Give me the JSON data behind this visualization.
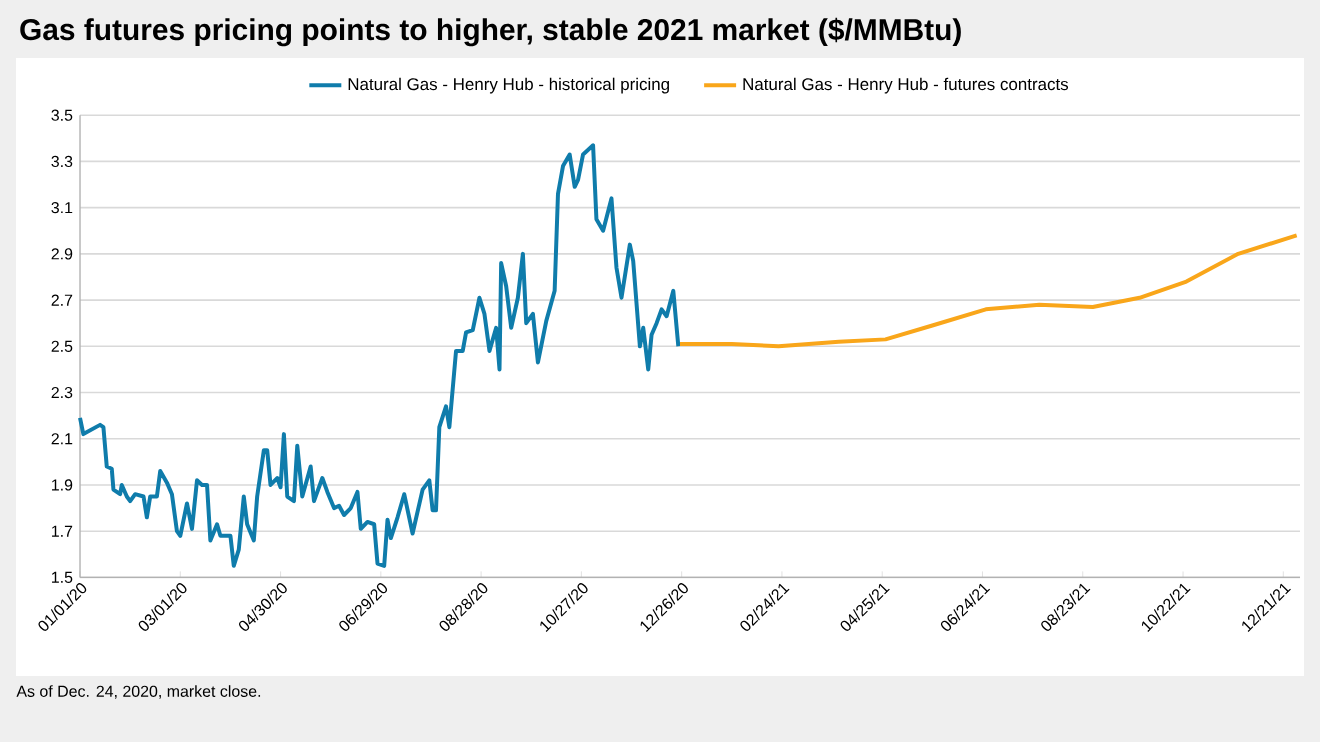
{
  "chart_data": {
    "type": "line",
    "title": "Gas futures pricing points to higher, stable 2021 market ($/MMBtu)",
    "xlim": [
      "2020-01-01",
      "2021-12-31"
    ],
    "ylim": [
      1.5,
      3.5
    ],
    "xticks": [
      {
        "value": "2020-01-01",
        "label": "01/01/20"
      },
      {
        "value": "2020-03-01",
        "label": "03/01/20"
      },
      {
        "value": "2020-04-30",
        "label": "04/30/20"
      },
      {
        "value": "2020-06-29",
        "label": "06/29/20"
      },
      {
        "value": "2020-08-28",
        "label": "08/28/20"
      },
      {
        "value": "2020-10-27",
        "label": "10/27/20"
      },
      {
        "value": "2020-12-26",
        "label": "12/26/20"
      },
      {
        "value": "2021-02-24",
        "label": "02/24/21"
      },
      {
        "value": "2021-04-25",
        "label": "04/25/21"
      },
      {
        "value": "2021-06-24",
        "label": "06/24/21"
      },
      {
        "value": "2021-08-23",
        "label": "08/23/21"
      },
      {
        "value": "2021-10-22",
        "label": "10/22/21"
      },
      {
        "value": "2021-12-21",
        "label": "12/21/21"
      }
    ],
    "yticks": [
      1.5,
      1.7,
      1.9,
      2.1,
      2.3,
      2.5,
      2.7,
      2.9,
      3.1,
      3.3,
      3.5
    ],
    "grid": "y",
    "legend": "top",
    "series": [
      {
        "name": "Natural Gas - Henry Hub - historical pricing",
        "color": "#0f7cab",
        "x": [
          "2020-01-01",
          "2020-01-03",
          "2020-01-13",
          "2020-01-15",
          "2020-01-17",
          "2020-01-20",
          "2020-01-21",
          "2020-01-25",
          "2020-01-26",
          "2020-01-29",
          "2020-01-31",
          "2020-02-03",
          "2020-02-08",
          "2020-02-10",
          "2020-02-12",
          "2020-02-16",
          "2020-02-18",
          "2020-02-22",
          "2020-02-25",
          "2020-02-28",
          "2020-03-01",
          "2020-03-05",
          "2020-03-08",
          "2020-03-11",
          "2020-03-14",
          "2020-03-17",
          "2020-03-19",
          "2020-03-23",
          "2020-03-25",
          "2020-03-31",
          "2020-04-02",
          "2020-04-05",
          "2020-04-08",
          "2020-04-10",
          "2020-04-14",
          "2020-04-16",
          "2020-04-20",
          "2020-04-22",
          "2020-04-24",
          "2020-04-28",
          "2020-04-30",
          "2020-05-02",
          "2020-05-04",
          "2020-05-08",
          "2020-05-10",
          "2020-05-13",
          "2020-05-18",
          "2020-05-20",
          "2020-05-25",
          "2020-05-28",
          "2020-06-01",
          "2020-06-04",
          "2020-06-07",
          "2020-06-11",
          "2020-06-15",
          "2020-06-17",
          "2020-06-21",
          "2020-06-25",
          "2020-06-27",
          "2020-07-01",
          "2020-07-03",
          "2020-07-05",
          "2020-07-09",
          "2020-07-13",
          "2020-07-18",
          "2020-07-24",
          "2020-07-28",
          "2020-07-30",
          "2020-08-01",
          "2020-08-03",
          "2020-08-07",
          "2020-08-09",
          "2020-08-13",
          "2020-08-17",
          "2020-08-19",
          "2020-08-23",
          "2020-08-27",
          "2020-08-30",
          "2020-09-02",
          "2020-09-06",
          "2020-09-08",
          "2020-09-09",
          "2020-09-12",
          "2020-09-15",
          "2020-09-19",
          "2020-09-22",
          "2020-09-24",
          "2020-09-28",
          "2020-10-01",
          "2020-10-06",
          "2020-10-11",
          "2020-10-13",
          "2020-10-16",
          "2020-10-20",
          "2020-10-23",
          "2020-10-25",
          "2020-10-28",
          "2020-11-03",
          "2020-11-05",
          "2020-11-09",
          "2020-11-14",
          "2020-11-17",
          "2020-11-20",
          "2020-11-25",
          "2020-11-27",
          "2020-12-01",
          "2020-12-03",
          "2020-12-06",
          "2020-12-08",
          "2020-12-11",
          "2020-12-14",
          "2020-12-17",
          "2020-12-21",
          "2020-12-24"
        ],
        "values": [
          2.19,
          2.12,
          2.16,
          2.15,
          1.98,
          1.97,
          1.88,
          1.86,
          1.9,
          1.85,
          1.83,
          1.86,
          1.85,
          1.76,
          1.85,
          1.85,
          1.96,
          1.91,
          1.86,
          1.7,
          1.68,
          1.82,
          1.71,
          1.92,
          1.9,
          1.9,
          1.66,
          1.73,
          1.68,
          1.68,
          1.55,
          1.62,
          1.85,
          1.73,
          1.66,
          1.85,
          2.05,
          2.05,
          1.9,
          1.93,
          1.89,
          2.12,
          1.85,
          1.83,
          2.07,
          1.85,
          1.98,
          1.83,
          1.93,
          1.87,
          1.8,
          1.81,
          1.77,
          1.8,
          1.87,
          1.71,
          1.74,
          1.73,
          1.56,
          1.55,
          1.75,
          1.67,
          1.76,
          1.86,
          1.69,
          1.88,
          1.92,
          1.79,
          1.79,
          2.15,
          2.24,
          2.15,
          2.48,
          2.48,
          2.56,
          2.57,
          2.71,
          2.64,
          2.48,
          2.58,
          2.4,
          2.86,
          2.76,
          2.58,
          2.71,
          2.9,
          2.6,
          2.64,
          2.43,
          2.61,
          2.74,
          3.16,
          3.28,
          3.33,
          3.19,
          3.22,
          3.33,
          3.37,
          3.05,
          3.0,
          3.14,
          2.84,
          2.71,
          2.94,
          2.87,
          2.5,
          2.58,
          2.4,
          2.55,
          2.6,
          2.66,
          2.63,
          2.74,
          2.5
        ]
      },
      {
        "name": "Natural Gas - Henry Hub - futures contracts",
        "color": "#f9a61a",
        "x": [
          "2020-12-25",
          "2021-01-25",
          "2021-02-22",
          "2021-03-30",
          "2021-04-27",
          "2021-05-25",
          "2021-06-26",
          "2021-07-28",
          "2021-08-29",
          "2021-09-26",
          "2021-10-24",
          "2021-11-24",
          "2021-12-29"
        ],
        "values": [
          2.51,
          2.51,
          2.5,
          2.52,
          2.53,
          2.59,
          2.66,
          2.68,
          2.67,
          2.71,
          2.78,
          2.9,
          2.98
        ]
      }
    ],
    "annotations": [
      "As of Dec. 24, 2020, market close."
    ]
  }
}
